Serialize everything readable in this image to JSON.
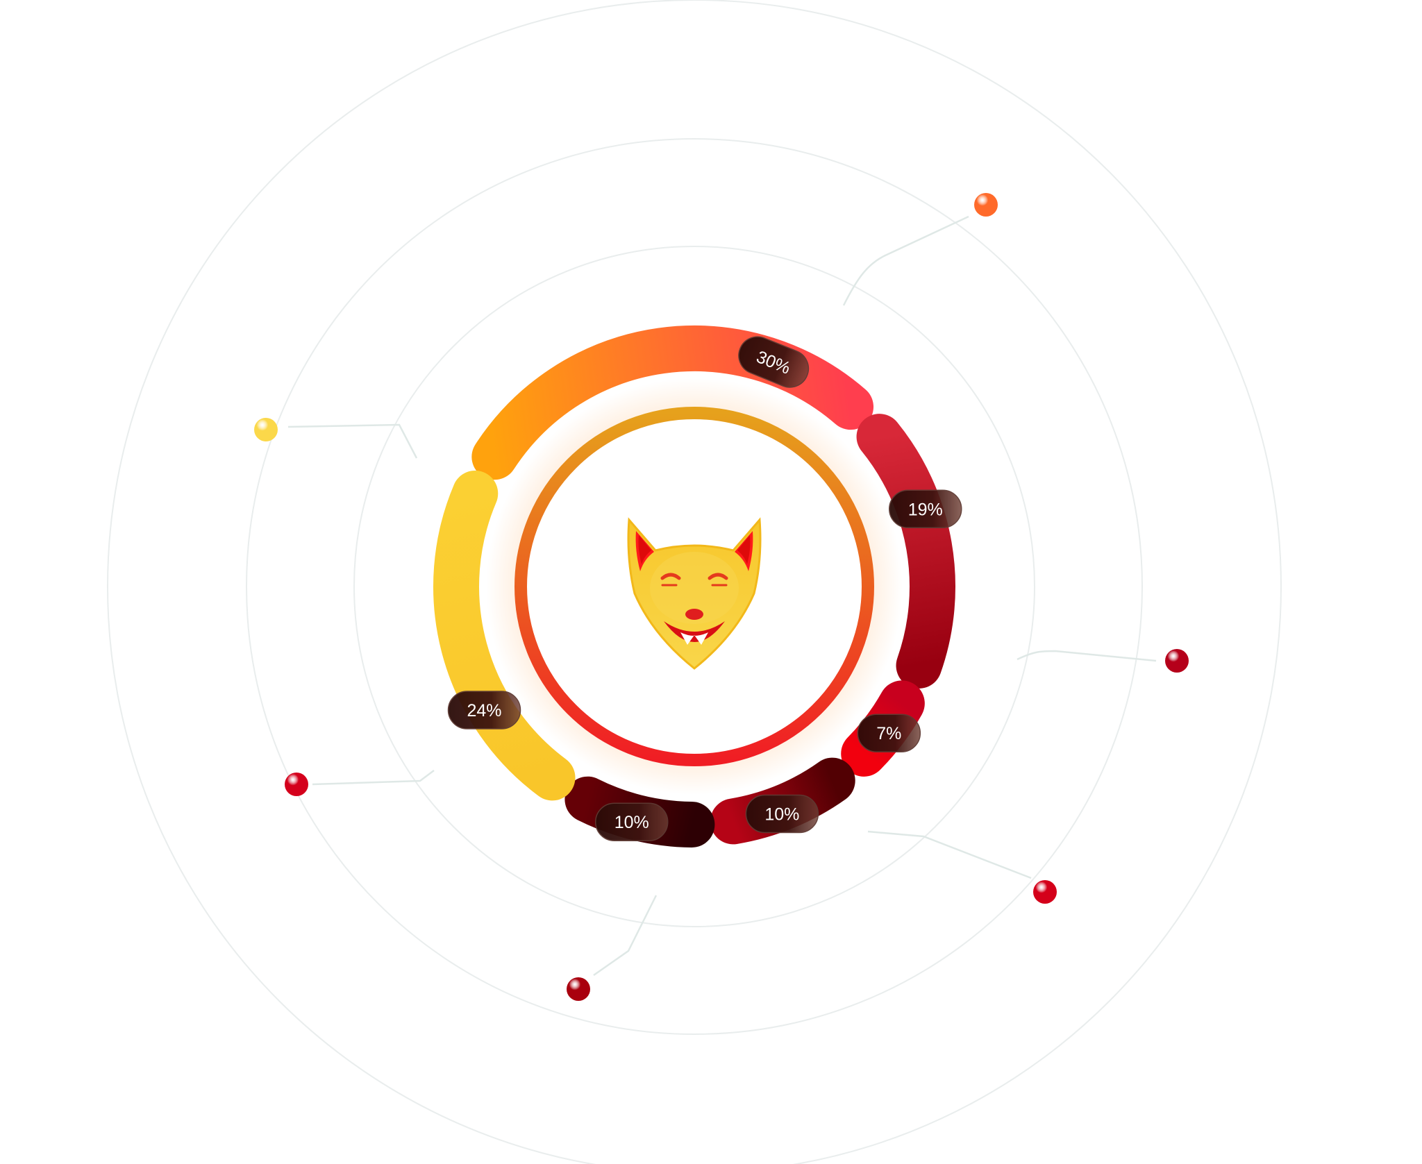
{
  "chart_data": {
    "type": "pie",
    "variant": "donut",
    "slices": [
      {
        "value": 30,
        "label": "30%",
        "colors": [
          "#ffa20d",
          "#ff3e4e"
        ]
      },
      {
        "value": 19,
        "label": "19%",
        "colors": [
          "#d82838",
          "#980010"
        ]
      },
      {
        "value": 7,
        "label": "7%",
        "colors": [
          "#c8001e",
          "#f2000e"
        ]
      },
      {
        "value": 10,
        "label": "10%",
        "colors": [
          "#520003",
          "#b50416"
        ]
      },
      {
        "value": 10,
        "label": "10%",
        "colors": [
          "#2d0004",
          "#650006"
        ]
      },
      {
        "value": 24,
        "label": "24%",
        "colors": [
          "#f9c62a",
          "#fbd033"
        ]
      }
    ],
    "center": {
      "icon": "fox-face-icon",
      "ring_colors": [
        "#e6a11c",
        "#f01d24"
      ]
    },
    "marker_colors": [
      "#ff6a2a",
      "#b5001a",
      "#d4001a",
      "#a9000e",
      "#d4001c",
      "#fbd84a"
    ],
    "legend": false
  }
}
